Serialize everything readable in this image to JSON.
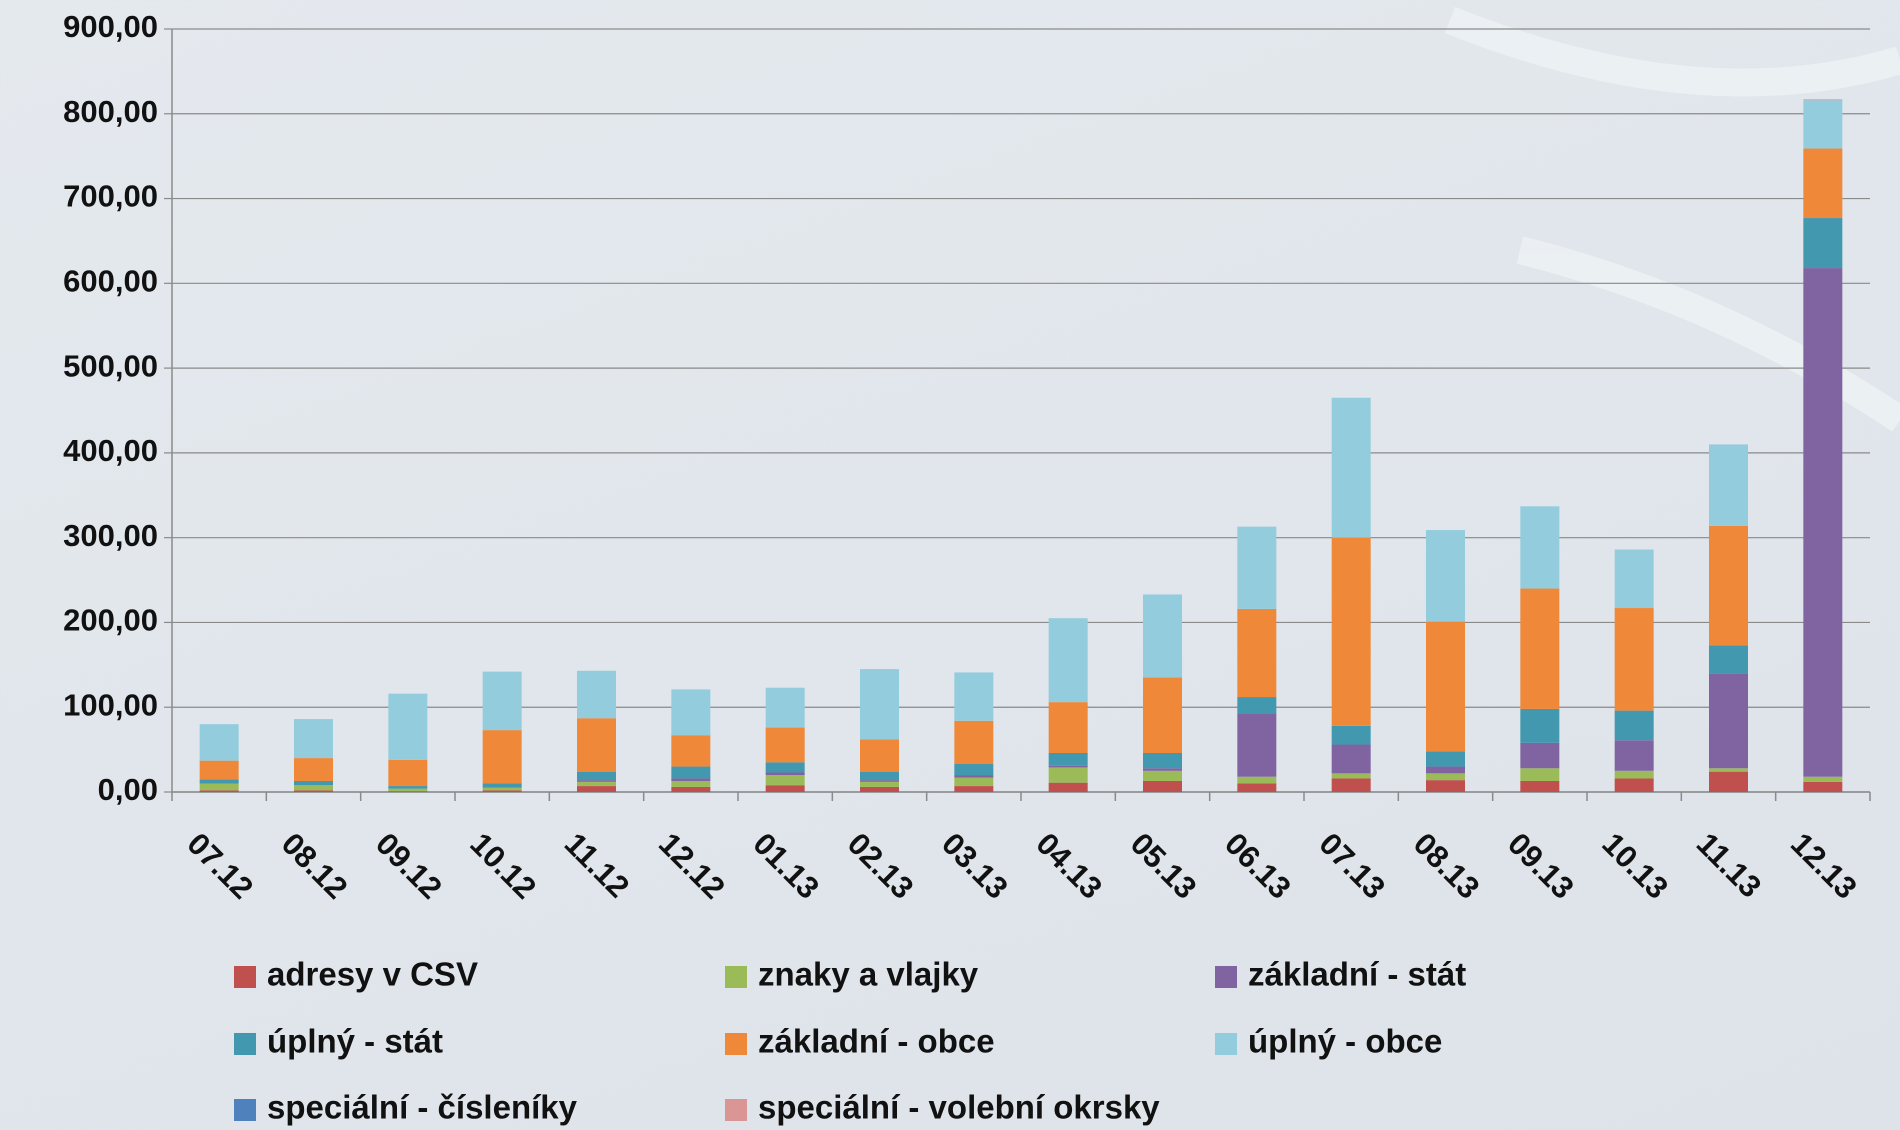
{
  "chart_data": {
    "type": "stacked_bar",
    "categories": [
      "07.12",
      "08.12",
      "09.12",
      "10.12",
      "11.12",
      "12.12",
      "01.13",
      "02.13",
      "03.13",
      "04.13",
      "05.13",
      "06.13",
      "07.13",
      "08.13",
      "09.13",
      "10.13",
      "11.13",
      "12.13"
    ],
    "series": [
      {
        "name": "adresy v CSV",
        "color": "#c0504d",
        "values": [
          2,
          2,
          1,
          2,
          7,
          6,
          8,
          6,
          7,
          11,
          13,
          10,
          16,
          14,
          13,
          16,
          24,
          12
        ]
      },
      {
        "name": "znaky a vlajky",
        "color": "#9bbb59",
        "values": [
          8,
          6,
          3,
          3,
          5,
          7,
          12,
          6,
          10,
          18,
          12,
          8,
          6,
          8,
          15,
          9,
          4,
          6
        ]
      },
      {
        "name": "základní - stát",
        "color": "#8064a2",
        "values": [
          0,
          0,
          0,
          0,
          2,
          3,
          3,
          2,
          3,
          2,
          3,
          74,
          34,
          8,
          30,
          36,
          112,
          600
        ]
      },
      {
        "name": "úplný - stát",
        "color": "#4198af",
        "values": [
          5,
          5,
          3,
          5,
          10,
          14,
          12,
          10,
          13,
          15,
          18,
          20,
          22,
          18,
          40,
          35,
          33,
          59
        ]
      },
      {
        "name": "základní - obce",
        "color": "#f0883a",
        "values": [
          22,
          27,
          31,
          63,
          63,
          37,
          41,
          38,
          51,
          60,
          89,
          104,
          222,
          153,
          142,
          121,
          141,
          82
        ]
      },
      {
        "name": "úplný - obce",
        "color": "#93cddd",
        "values": [
          43,
          46,
          78,
          69,
          56,
          54,
          47,
          83,
          57,
          99,
          98,
          97,
          165,
          108,
          97,
          69,
          96,
          57
        ]
      },
      {
        "name": "speciální - čísleníky",
        "color": "#4f81bd",
        "values": [
          0,
          0,
          0,
          0,
          0,
          0,
          0,
          0,
          0,
          0,
          0,
          0,
          0,
          0,
          0,
          0,
          0,
          0
        ]
      },
      {
        "name": "speciální - volební okrsky",
        "color": "#d99694",
        "values": [
          0,
          0,
          0,
          0,
          0,
          0,
          0,
          0,
          0,
          0,
          0,
          0,
          0,
          0,
          0,
          0,
          0,
          1
        ]
      }
    ],
    "ylim": [
      0,
      900
    ],
    "yticks": [
      {
        "value": 0,
        "label": "0,00"
      },
      {
        "value": 100,
        "label": "100,00"
      },
      {
        "value": 200,
        "label": "200,00"
      },
      {
        "value": 300,
        "label": "300,00"
      },
      {
        "value": 400,
        "label": "400,00"
      },
      {
        "value": 500,
        "label": "500,00"
      },
      {
        "value": 600,
        "label": "600,00"
      },
      {
        "value": 700,
        "label": "700,00"
      },
      {
        "value": 800,
        "label": "800,00"
      },
      {
        "value": 900,
        "label": "900,00"
      }
    ],
    "grid": true
  }
}
